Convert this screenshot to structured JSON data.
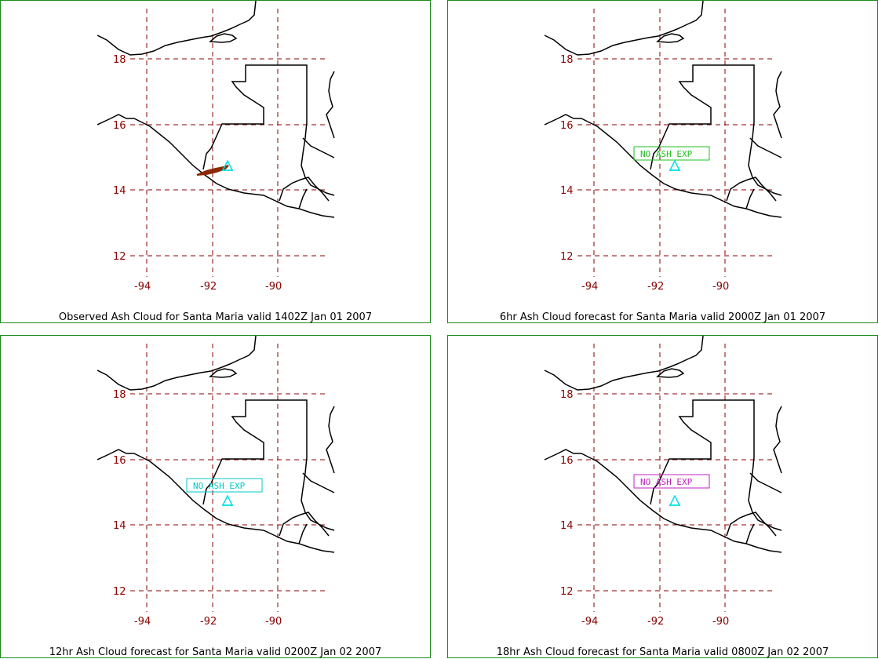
{
  "colors": {
    "panel_border": "#1a8a1a",
    "grid": "#8b0000",
    "coast": "#000000",
    "volcano": "#00e0e0",
    "ash_observed": "#8b2a00"
  },
  "lat_labels": [
    "18",
    "16",
    "14",
    "12"
  ],
  "lon_labels": [
    "-94",
    "-92",
    "-90"
  ],
  "volcano_icon": "triangle-icon",
  "panels": [
    {
      "caption": "Observed Ash Cloud for Santa  Maria valid 1402Z Jan 01 2007",
      "status": "",
      "status_color": ""
    },
    {
      "caption": "6hr Ash Cloud forecast for Santa  Maria valid 2000Z Jan 01 2007",
      "status": "NO ASH EXP",
      "status_color": "#1fbf1f"
    },
    {
      "caption": "12hr Ash Cloud forecast for Santa  Maria valid 0200Z Jan 02 2007",
      "status": "NO ASH EXP",
      "status_color": "#00c8c8"
    },
    {
      "caption": "18hr Ash Cloud forecast for Santa  Maria valid 0800Z Jan 02 2007",
      "status": "NO ASH EXP",
      "status_color": "#c020c0"
    }
  ]
}
